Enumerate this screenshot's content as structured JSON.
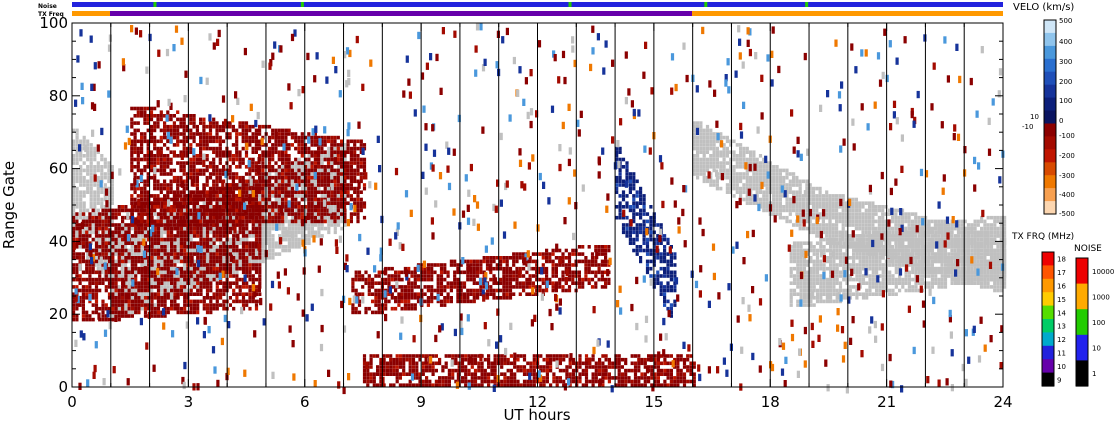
{
  "chart_data": {
    "type": "heatmap",
    "title": "",
    "xlabel": "UT hours",
    "ylabel": "Range Gate",
    "xlim": [
      0,
      24
    ],
    "ylim": [
      0,
      100
    ],
    "x_ticks": [
      "0",
      "3",
      "6",
      "9",
      "12",
      "15",
      "18",
      "21",
      "24"
    ],
    "y_ticks": [
      "0",
      "20",
      "40",
      "60",
      "80",
      "100"
    ],
    "top_strip_labels": [
      "Noise",
      "TX Freq"
    ],
    "ground_scatter_color": "#c0c0c0",
    "regions": [
      {
        "kind": "ground",
        "from_hour": 0.0,
        "to_hour": 1.0,
        "upper_gate_range": [
          70,
          60
        ],
        "lower_gate_range": [
          40,
          28
        ]
      },
      {
        "kind": "ground",
        "from_hour": 1.0,
        "to_hour": 7.0,
        "upper_gate_range": [
          42,
          66
        ],
        "lower_gate_range": [
          18,
          44
        ]
      },
      {
        "kind": "ground",
        "from_hour": 16.0,
        "to_hour": 19.5,
        "upper_gate_range": [
          72,
          52
        ],
        "lower_gate_range": [
          58,
          40
        ]
      },
      {
        "kind": "ground",
        "from_hour": 19.5,
        "to_hour": 24.0,
        "upper_gate_range": [
          52,
          40
        ],
        "lower_gate_range": [
          40,
          26
        ]
      },
      {
        "kind": "ground",
        "from_hour": 18.5,
        "to_hour": 24.0,
        "upper_gate_range": [
          38,
          46
        ],
        "lower_gate_range": [
          22,
          30
        ]
      },
      {
        "kind": "negative",
        "from_hour": 0.0,
        "to_hour": 4.8,
        "upper_gate_range": [
          46,
          56
        ],
        "lower_gate_range": [
          18,
          22
        ]
      },
      {
        "kind": "negative",
        "from_hour": 1.5,
        "to_hour": 7.5,
        "upper_gate_range": [
          76,
          66
        ],
        "lower_gate_range": [
          44,
          46
        ]
      },
      {
        "kind": "negative",
        "from_hour": 7.2,
        "to_hour": 13.8,
        "upper_gate_range": [
          30,
          38
        ],
        "lower_gate_range": [
          20,
          28
        ]
      },
      {
        "kind": "negative",
        "from_hour": 7.5,
        "to_hour": 16.0,
        "upper_gate_range": [
          8,
          7
        ],
        "lower_gate_range": [
          0,
          0
        ]
      },
      {
        "kind": "positive",
        "from_hour": 14.0,
        "to_hour": 15.5,
        "upper_gate_range": [
          66,
          36
        ],
        "lower_gate_range": [
          46,
          18
        ]
      }
    ],
    "velocity_colorbar": {
      "title": "VELO (km/s)",
      "ticks": [
        "500",
        "400",
        "300",
        "200",
        "100",
        "10",
        "0",
        "-10",
        "-100",
        "-200",
        "-300",
        "-400",
        "-500"
      ],
      "colors": [
        "#cfe6f7",
        "#8fc4ec",
        "#4a98dc",
        "#2a6fcf",
        "#1f4fb8",
        "#16339a",
        "#0c1f7a",
        "#0a1460",
        "#8b0000",
        "#a30a00",
        "#c01500",
        "#d84a00",
        "#ef7800",
        "#f7a050",
        "#fcd6b0"
      ]
    },
    "frequency_colorbar": {
      "title": "TX FRQ (MHz)",
      "ticks": [
        "18",
        "17",
        "16",
        "15",
        "14",
        "13",
        "12",
        "11",
        "10",
        "9"
      ],
      "colors": [
        "#ee0000",
        "#ff5500",
        "#ff9900",
        "#ffcc00",
        "#55dd00",
        "#00cc66",
        "#00aacc",
        "#2222dd",
        "#6600aa",
        "#000000"
      ]
    },
    "noise_colorbar": {
      "title": "NOISE",
      "ticks": [
        "10000",
        "1000",
        "100",
        "10",
        "1"
      ],
      "colors": [
        "#ee0000",
        "#ffaa00",
        "#22cc00",
        "#2222ee",
        "#000000"
      ]
    }
  }
}
